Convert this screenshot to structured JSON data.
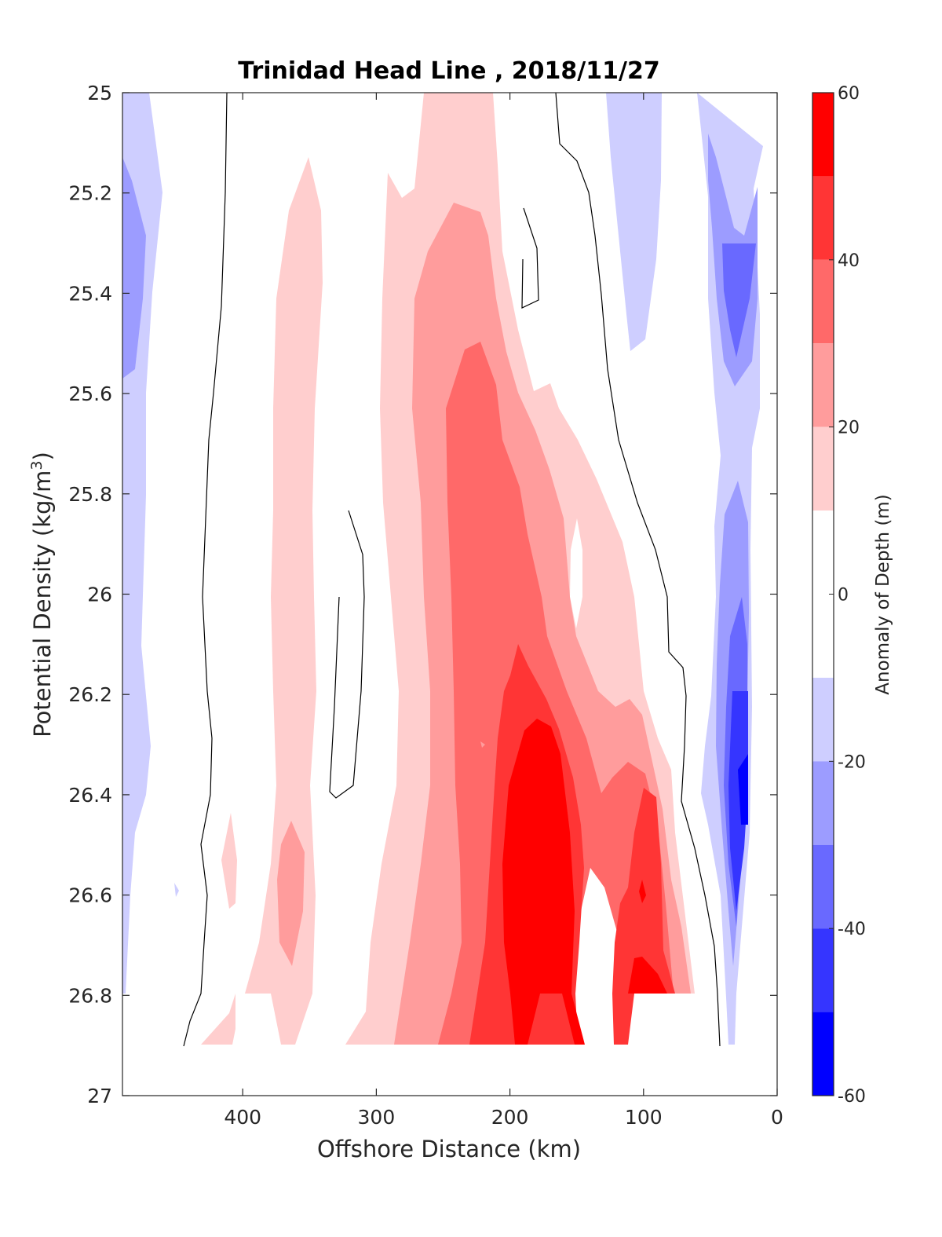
{
  "chart_data": {
    "type": "heatmap",
    "subtype": "filled contour section",
    "title": "Trinidad Head Line , 2018/11/27",
    "xlabel": "Offshore Distance (km)",
    "ylabel": "Potential Density (kg/m³)",
    "ylabel_main": "Potential Density (kg/m",
    "ylabel_sup": "3",
    "ylabel_close": ")",
    "xlim": [
      490,
      0
    ],
    "x_reversed": true,
    "ylim": [
      25,
      27
    ],
    "y_reversed": true,
    "x_ticks": [
      400,
      300,
      200,
      100,
      0
    ],
    "x_tick_labels": [
      "400",
      "300",
      "200",
      "100",
      "0"
    ],
    "y_ticks": [
      25,
      25.2,
      25.4,
      25.6,
      25.8,
      26,
      26.2,
      26.4,
      26.6,
      26.8,
      27
    ],
    "y_tick_labels": [
      "25",
      "25.2",
      "25.4",
      "25.6",
      "25.8",
      "26",
      "26.2",
      "26.4",
      "26.6",
      "26.8",
      "27"
    ],
    "grid": false,
    "colorbar": {
      "label": "Anomaly of Depth (m)",
      "range": [
        -60,
        60
      ],
      "tick_values": [
        60,
        40,
        20,
        0,
        -20,
        -40,
        -60
      ],
      "tick_labels": [
        "60",
        "40",
        "20",
        "0",
        "-20",
        "-40",
        "-60"
      ],
      "levels": [
        {
          "min": 50,
          "max": 60,
          "color": "#ff0000"
        },
        {
          "min": 40,
          "max": 50,
          "color": "#ff3535"
        },
        {
          "min": 30,
          "max": 40,
          "color": "#ff6969"
        },
        {
          "min": 20,
          "max": 30,
          "color": "#ff9c9c"
        },
        {
          "min": 10,
          "max": 20,
          "color": "#ffcece"
        },
        {
          "min": -10,
          "max": 10,
          "color": "#ffffff"
        },
        {
          "min": -20,
          "max": -10,
          "color": "#ceceff"
        },
        {
          "min": -30,
          "max": -20,
          "color": "#9c9cff"
        },
        {
          "min": -40,
          "max": -30,
          "color": "#6969ff"
        },
        {
          "min": -50,
          "max": -40,
          "color": "#3535ff"
        },
        {
          "min": -60,
          "max": -50,
          "color": "#0000ff"
        }
      ]
    },
    "data_extent": {
      "x_max": 490,
      "x_min": 20,
      "y_bottom": 26.9
    },
    "contour_lines": [
      {
        "level": 0,
        "color": "#000000"
      }
    ],
    "features": [
      {
        "name": "offshore-negative-band",
        "sign": "negative",
        "max_magnitude": 30,
        "x_range": [
          470,
          490
        ],
        "y_range": [
          25.0,
          26.85
        ]
      },
      {
        "name": "nearshore-negative-core",
        "sign": "negative",
        "max_magnitude": 60,
        "x_range": [
          20,
          60
        ],
        "y_range": [
          25.0,
          26.9
        ]
      },
      {
        "name": "mid-section-negative-band",
        "sign": "negative",
        "max_magnitude": 20,
        "x_range": [
          85,
          130
        ],
        "y_range": [
          25.0,
          25.5
        ]
      },
      {
        "name": "main-positive-core",
        "sign": "positive",
        "max_magnitude": 60,
        "x_range": [
          60,
          300
        ],
        "y_range": [
          25.0,
          26.9
        ]
      },
      {
        "name": "secondary-positive-band",
        "sign": "positive",
        "max_magnitude": 30,
        "x_range": [
          340,
          400
        ],
        "y_range": [
          25.13,
          26.9
        ]
      }
    ]
  }
}
